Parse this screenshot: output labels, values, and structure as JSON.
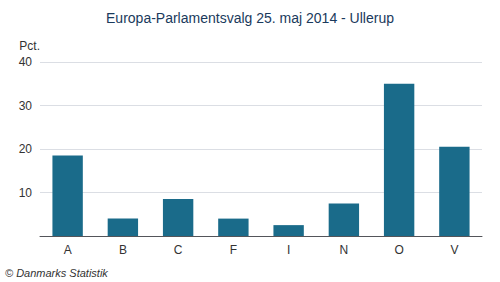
{
  "chart_data": {
    "type": "bar",
    "title": "Europa-Parlamentsvalg 25. maj 2014 - Ullerup",
    "categories": [
      "A",
      "B",
      "C",
      "F",
      "I",
      "N",
      "O",
      "V"
    ],
    "values": [
      18.5,
      4.0,
      8.5,
      4.0,
      2.5,
      7.5,
      35.0,
      20.5
    ],
    "color": "#1a6b8a",
    "ylabel": "Pct.",
    "ylim": [
      0,
      40
    ],
    "yticks": [
      10,
      20,
      30,
      40
    ],
    "grid": true,
    "annotations": [
      "© Danmarks Statistik"
    ]
  }
}
